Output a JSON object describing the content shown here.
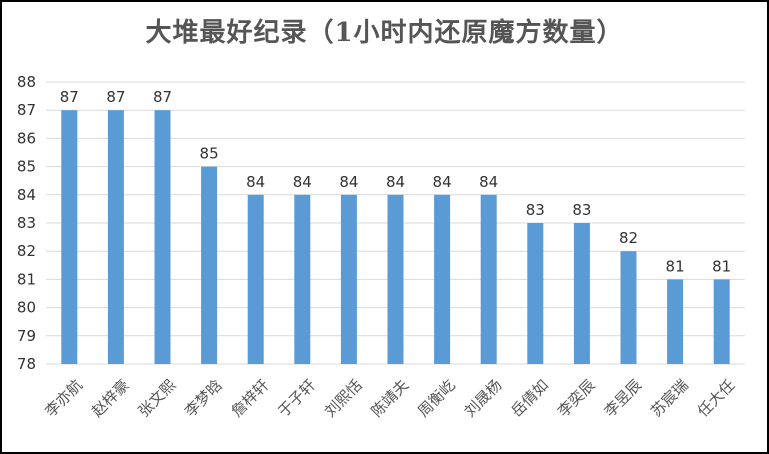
{
  "chart_data": {
    "type": "bar",
    "title": "大堆最好纪录（1小时内还原魔方数量）",
    "categories": [
      "李亦航",
      "赵梓豪",
      "张文熙",
      "李梦晗",
      "詹梓轩",
      "于子轩",
      "刘熙恬",
      "陈靖夫",
      "周衡屹",
      "刘晟杨",
      "岳倩如",
      "李奕辰",
      "李昱辰",
      "苏宸瑞",
      "任大任"
    ],
    "values": [
      87,
      87,
      87,
      85,
      84,
      84,
      84,
      84,
      84,
      84,
      83,
      83,
      82,
      81,
      81
    ],
    "ylim": [
      78,
      88
    ],
    "yticks": [
      "78",
      "79",
      "80",
      "81",
      "82",
      "83",
      "84",
      "85",
      "86",
      "87",
      "88"
    ],
    "xlabel": "",
    "ylabel": "",
    "grid": true,
    "bar_color": "#5b9bd5"
  }
}
